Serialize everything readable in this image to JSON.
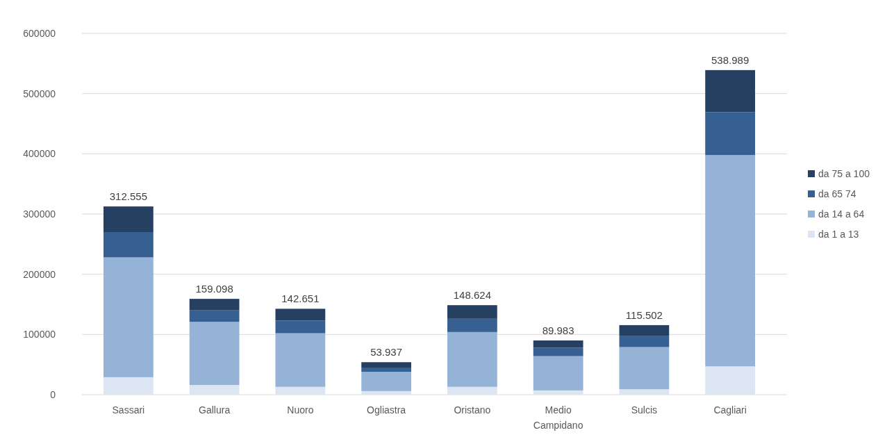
{
  "chart_data": {
    "type": "bar",
    "stacked": true,
    "categories": [
      "Sassari",
      "Gallura",
      "Nuoro",
      "Ogliastra",
      "Oristano",
      "Medio Campidano",
      "Sulcis",
      "Cagliari"
    ],
    "series": [
      {
        "name": "da 1 a 13",
        "color": "#dce6f2",
        "values": [
          29000,
          16000,
          13000,
          6000,
          13000,
          7000,
          9000,
          47000
        ]
      },
      {
        "name": "da 14 a 64",
        "color": "#95b3d7",
        "values": [
          199000,
          105000,
          89000,
          32000,
          91000,
          57000,
          70000,
          351000
        ]
      },
      {
        "name": "da 65 74",
        "color": "#376092",
        "values": [
          42000,
          19000,
          21000,
          7000,
          22000,
          14000,
          19000,
          71000
        ]
      },
      {
        "name": "da 75 a 100",
        "color": "#254061",
        "values": [
          42555,
          19098,
          19651,
          8937,
          22624,
          11983,
          17502,
          69989
        ]
      }
    ],
    "totals": [
      "312.555",
      "159.098",
      "142.651",
      "53.937",
      "148.624",
      "89.983",
      "115.502",
      "538.989"
    ],
    "ylim": [
      0,
      600000
    ],
    "yticks": [
      0,
      100000,
      200000,
      300000,
      400000,
      500000,
      600000
    ],
    "grid": "y",
    "legend": "right"
  }
}
